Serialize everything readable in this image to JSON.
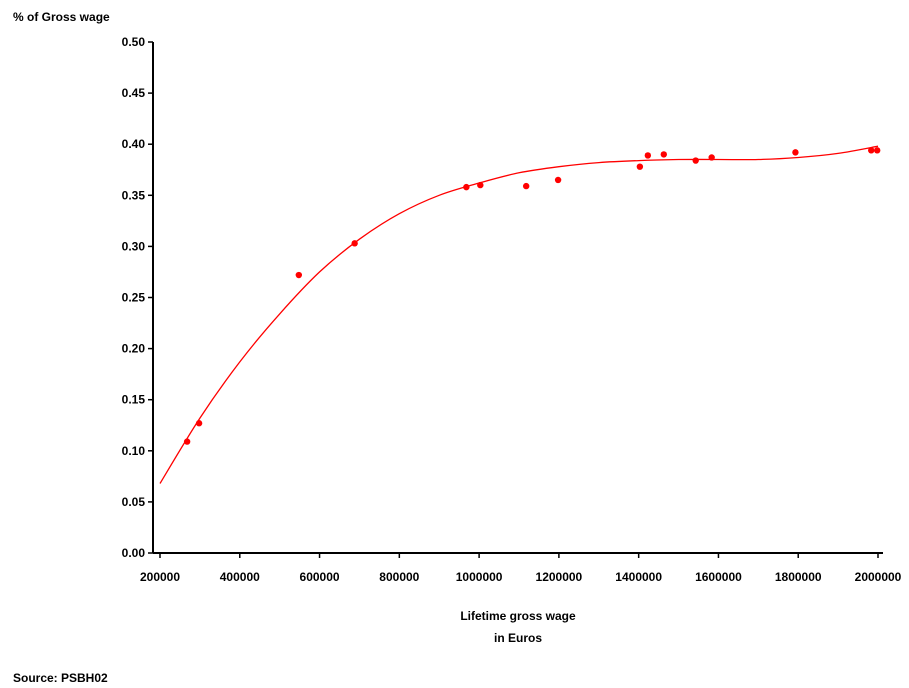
{
  "chart_data": {
    "type": "scatter",
    "ylabel": "% of Gross wage",
    "xlabel_lines": [
      "Lifetime gross wage",
      "in Euros"
    ],
    "source": "Source: PSBH02",
    "xlim": [
      200000,
      2000000
    ],
    "ylim": [
      0,
      0.5
    ],
    "x_ticks": [
      200000,
      400000,
      600000,
      800000,
      1000000,
      1200000,
      1400000,
      1600000,
      1800000,
      2000000
    ],
    "x_tick_labels": [
      "200000",
      "400000",
      "600000",
      "800000",
      "1000000",
      "1200000",
      "1400000",
      "1600000",
      "1800000",
      "2000000"
    ],
    "y_ticks": [
      0,
      0.05,
      0.1,
      0.15,
      0.2,
      0.25,
      0.3,
      0.35,
      0.4,
      0.45,
      0.5
    ],
    "y_tick_labels": [
      "0.00",
      "0.05",
      "0.10",
      "0.15",
      "0.20",
      "0.25",
      "0.30",
      "0.35",
      "0.40",
      "0.45",
      "0.50"
    ],
    "grid": false,
    "colors": {
      "points": "#ff0000",
      "fit_line": "#ff0000",
      "axes": "#000000"
    },
    "points": [
      {
        "x": 268000,
        "y": 0.109
      },
      {
        "x": 298000,
        "y": 0.127
      },
      {
        "x": 548000,
        "y": 0.272
      },
      {
        "x": 688000,
        "y": 0.303
      },
      {
        "x": 968000,
        "y": 0.358
      },
      {
        "x": 1003000,
        "y": 0.36
      },
      {
        "x": 1118000,
        "y": 0.359
      },
      {
        "x": 1198000,
        "y": 0.365
      },
      {
        "x": 1403000,
        "y": 0.378
      },
      {
        "x": 1423000,
        "y": 0.389
      },
      {
        "x": 1463000,
        "y": 0.39
      },
      {
        "x": 1543000,
        "y": 0.384
      },
      {
        "x": 1583000,
        "y": 0.387
      },
      {
        "x": 1793000,
        "y": 0.392
      },
      {
        "x": 1983000,
        "y": 0.394
      },
      {
        "x": 1998000,
        "y": 0.394
      }
    ],
    "fit_line": [
      {
        "x": 200000,
        "y": 0.068
      },
      {
        "x": 300000,
        "y": 0.132
      },
      {
        "x": 400000,
        "y": 0.187
      },
      {
        "x": 500000,
        "y": 0.234
      },
      {
        "x": 600000,
        "y": 0.275
      },
      {
        "x": 700000,
        "y": 0.307
      },
      {
        "x": 800000,
        "y": 0.332
      },
      {
        "x": 900000,
        "y": 0.35
      },
      {
        "x": 1000000,
        "y": 0.362
      },
      {
        "x": 1100000,
        "y": 0.372
      },
      {
        "x": 1200000,
        "y": 0.378
      },
      {
        "x": 1300000,
        "y": 0.382
      },
      {
        "x": 1400000,
        "y": 0.384
      },
      {
        "x": 1500000,
        "y": 0.385
      },
      {
        "x": 1600000,
        "y": 0.385
      },
      {
        "x": 1700000,
        "y": 0.385
      },
      {
        "x": 1800000,
        "y": 0.387
      },
      {
        "x": 1900000,
        "y": 0.391
      },
      {
        "x": 2000000,
        "y": 0.398
      }
    ]
  }
}
